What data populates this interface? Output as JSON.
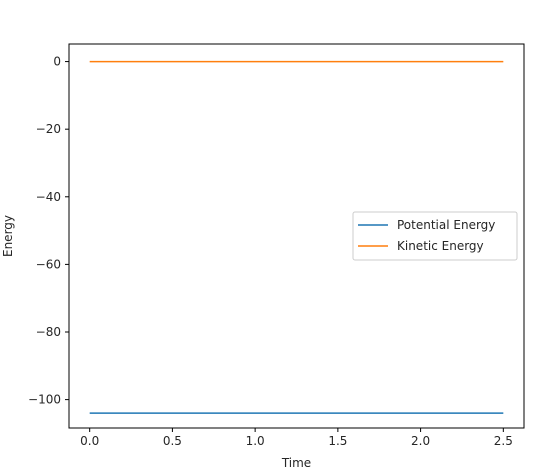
{
  "chart_data": {
    "type": "line",
    "title": "",
    "xlabel": "Time",
    "ylabel": "Energy",
    "xlim": [
      -0.125,
      2.625
    ],
    "ylim": [
      -108.4,
      5.2
    ],
    "xticks": [
      0.0,
      0.5,
      1.0,
      1.5,
      2.0,
      2.5
    ],
    "xtick_labels": [
      "0.0",
      "0.5",
      "1.0",
      "1.5",
      "2.0",
      "2.5"
    ],
    "yticks": [
      0,
      -20,
      -40,
      -60,
      -80,
      -100
    ],
    "ytick_labels": [
      "0",
      "−20",
      "−40",
      "−60",
      "−80",
      "−100"
    ],
    "grid": false,
    "legend_position": "center-right",
    "series": [
      {
        "name": "Potential Energy",
        "color": "#1f77b4",
        "x": [
          0.0,
          2.5
        ],
        "values": [
          -104.0,
          -104.0
        ]
      },
      {
        "name": "Kinetic Energy",
        "color": "#ff7f0e",
        "x": [
          0.0,
          2.5
        ],
        "values": [
          0.0,
          0.0
        ]
      }
    ]
  }
}
